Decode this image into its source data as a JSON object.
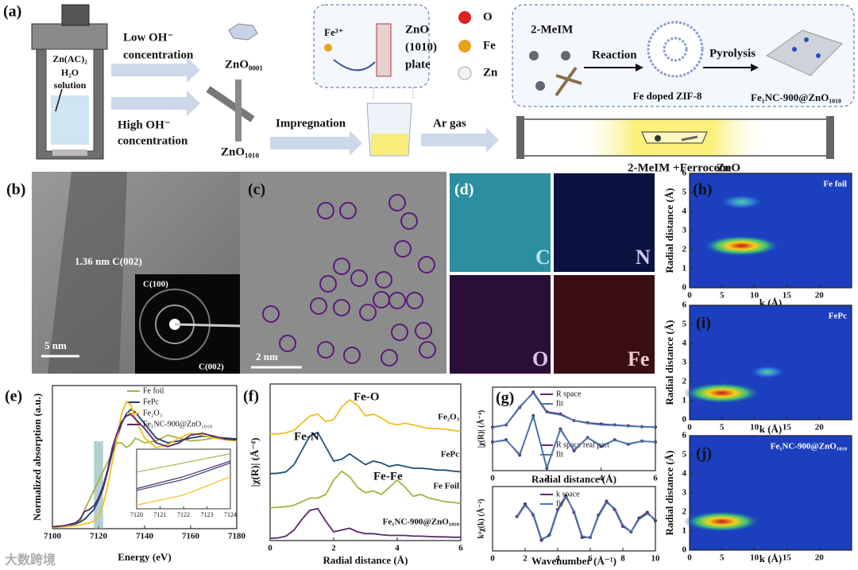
{
  "panel_a": {
    "label": "(a)",
    "vessel": [
      "Zn(AC)₂",
      "H₂O",
      "solution"
    ],
    "low": [
      "Low OH⁻",
      "concentration"
    ],
    "high": [
      "High OH⁻",
      "concentration"
    ],
    "zno0001": "ZnO₀₀₀₁",
    "zno1010": "ZnO₁₀₁₀",
    "impregnation": "Impregnation",
    "inset": [
      "Fe³⁺",
      "ZnO",
      "(1010)",
      "plate"
    ],
    "atoms": [
      "O",
      "Fe",
      "Zn"
    ],
    "mof": {
      "ligand": "2-MeIM",
      "reaction": "Reaction",
      "pyrolysis": "Pyrolysis",
      "zif": "Fe  doped ZIF-8",
      "product": "Fe₁NC-900@ZnO₁₀₁₀"
    },
    "ar": "Ar gas",
    "furnace": [
      "2-MeIM +Ferrocene",
      "ZnO"
    ]
  },
  "panel_b": {
    "label": "(b)",
    "lattice": "1.36 nm C(002)",
    "rings": [
      "C(100)",
      "C(002)"
    ],
    "scale": "5  nm"
  },
  "panel_c": {
    "label": "(c)",
    "scale": "2 nm"
  },
  "panel_d": {
    "label": "(d)",
    "maps": [
      "C",
      "N",
      "O",
      "Fe"
    ]
  },
  "chart_data": [
    {
      "type": "line",
      "label": "(e)",
      "xlabel": "Energy (eV)",
      "ylabel": "Normalized absorption (a.u.)",
      "xlim": [
        7100,
        7180
      ],
      "xticks": [
        7100,
        7120,
        7140,
        7160,
        7180
      ],
      "ylim": [
        0,
        1.5
      ],
      "legend": "upper right",
      "highlight_x": [
        7118,
        7122
      ],
      "x": [
        7100,
        7105,
        7110,
        7112,
        7114,
        7116,
        7118,
        7120,
        7122,
        7124,
        7126,
        7128,
        7130,
        7132,
        7134,
        7136,
        7140,
        7145,
        7150,
        7155,
        7160,
        7165,
        7170,
        7175,
        7180
      ],
      "series": [
        {
          "name": "Fe foil",
          "color": "#a3b341",
          "values": [
            0.02,
            0.03,
            0.05,
            0.08,
            0.2,
            0.3,
            0.4,
            0.5,
            0.6,
            0.7,
            0.8,
            0.9,
            0.9,
            0.85,
            0.88,
            0.95,
            0.9,
            0.92,
            0.98,
            0.95,
            0.92,
            0.93,
            0.95,
            0.94,
            0.93
          ]
        },
        {
          "name": "FePc",
          "color": "#1f3f73",
          "values": [
            0.02,
            0.03,
            0.05,
            0.07,
            0.1,
            0.15,
            0.2,
            0.3,
            0.42,
            0.6,
            0.8,
            0.95,
            1.1,
            1.2,
            1.25,
            1.22,
            1.1,
            0.95,
            0.9,
            0.92,
            0.95,
            0.97,
            0.96,
            0.95,
            0.94
          ]
        },
        {
          "name": "Fe₂O₃",
          "color": "#f0c020",
          "values": [
            0.01,
            0.02,
            0.03,
            0.04,
            0.05,
            0.06,
            0.08,
            0.14,
            0.25,
            0.45,
            0.7,
            0.95,
            1.2,
            1.33,
            1.3,
            1.15,
            0.95,
            0.85,
            0.88,
            0.95,
            1.0,
            0.98,
            0.95,
            0.93,
            0.92
          ]
        },
        {
          "name": "Fe₁NC-900@ZnO₁₀₁₀",
          "color": "#5a2a6a",
          "values": [
            0.02,
            0.03,
            0.06,
            0.1,
            0.18,
            0.2,
            0.24,
            0.32,
            0.45,
            0.62,
            0.85,
            1.0,
            1.12,
            1.18,
            1.2,
            1.15,
            1.05,
            0.9,
            0.86,
            0.9,
            0.98,
            1.0,
            0.97,
            0.94,
            0.93
          ]
        }
      ],
      "inset": {
        "xlim": [
          7120,
          7124
        ],
        "xticks": [
          7120,
          7121,
          7122,
          7123,
          7124
        ],
        "ylim": [
          0.1,
          0.75
        ]
      }
    },
    {
      "type": "line",
      "label": "(f)",
      "xlabel": "Radial distance (Å)",
      "ylabel": "|χ(R)| (Å⁻⁴)",
      "xlim": [
        0,
        6
      ],
      "xticks": [
        0,
        2,
        4,
        6
      ],
      "annotations": [
        "Fe-O",
        "Fe-N",
        "Fe-Fe"
      ],
      "x": [
        0,
        0.25,
        0.5,
        0.75,
        1,
        1.25,
        1.5,
        1.75,
        2,
        2.25,
        2.5,
        2.75,
        3,
        3.25,
        3.5,
        3.75,
        4,
        4.25,
        4.5,
        4.75,
        5,
        5.25,
        5.5,
        5.75,
        6
      ],
      "series": [
        {
          "name": "Fe₂O₃",
          "color": "#f0c020",
          "values": [
            0.05,
            0.05,
            0.08,
            0.15,
            0.35,
            0.55,
            0.6,
            0.4,
            0.45,
            0.8,
            1.0,
            0.85,
            0.55,
            0.6,
            0.5,
            0.35,
            0.3,
            0.35,
            0.3,
            0.25,
            0.2,
            0.2,
            0.18,
            0.15,
            0.12
          ]
        },
        {
          "name": "FePc",
          "color": "#1f4e79",
          "values": [
            0.05,
            0.06,
            0.1,
            0.3,
            0.7,
            1.1,
            1.2,
            0.8,
            0.4,
            0.45,
            0.6,
            0.45,
            0.3,
            0.4,
            0.35,
            0.25,
            0.3,
            0.25,
            0.2,
            0.2,
            0.18,
            0.15,
            0.15,
            0.12,
            0.1
          ]
        },
        {
          "name": "Fe Foil",
          "color": "#a3b341",
          "values": [
            0.03,
            0.04,
            0.06,
            0.1,
            0.2,
            0.3,
            0.3,
            0.4,
            0.8,
            1.05,
            0.9,
            0.6,
            0.45,
            0.5,
            0.4,
            0.6,
            0.8,
            0.6,
            0.35,
            0.4,
            0.3,
            0.25,
            0.2,
            0.18,
            0.15
          ]
        },
        {
          "name": "Fe₁NC-900@ZnO₁₀₁₀",
          "color": "#5a2a6a",
          "values": [
            0.02,
            0.03,
            0.08,
            0.25,
            0.55,
            0.8,
            0.85,
            0.5,
            0.2,
            0.25,
            0.3,
            0.2,
            0.15,
            0.15,
            0.12,
            0.1,
            0.1,
            0.1,
            0.08,
            0.08,
            0.07,
            0.06,
            0.06,
            0.05,
            0.05
          ]
        }
      ]
    },
    {
      "type": "line",
      "label": "(g)",
      "xlabel": "Radial distance (Å)",
      "ylabel": "|χ(R)| (Å⁻⁴)",
      "xlim": [
        0,
        6
      ],
      "xticks": [
        0,
        2,
        4,
        6
      ],
      "legend": "upper right",
      "x": [
        0,
        0.5,
        1,
        1.5,
        2,
        2.5,
        3,
        3.5,
        4,
        4.5,
        5,
        5.5,
        6
      ],
      "series": [
        {
          "name": "R space",
          "color": "#5a2a6a",
          "marker": "circle",
          "values": [
            0.05,
            0.1,
            0.5,
            0.85,
            0.4,
            0.35,
            0.2,
            0.15,
            0.12,
            0.1,
            0.08,
            0.06,
            0.05
          ]
        },
        {
          "name": "fit",
          "color": "#4a78b0",
          "values": [
            0.04,
            0.1,
            0.52,
            0.83,
            0.38,
            0.33,
            0.2,
            0.14,
            0.1,
            0.09,
            0.07,
            0.06,
            0.05
          ]
        },
        {
          "name": "R space real part",
          "color": "#5a2a6a",
          "marker": "circle",
          "values": [
            0,
            0.05,
            -0.3,
            0.6,
            -0.6,
            0.3,
            -0.2,
            0.1,
            -0.1,
            0.05,
            -0.05,
            0.02,
            0
          ]
        },
        {
          "name": "fit",
          "color": "#4a78b0",
          "values": [
            0,
            0.04,
            -0.28,
            0.58,
            -0.58,
            0.28,
            -0.18,
            0.1,
            -0.08,
            0.04,
            -0.04,
            0.02,
            0
          ]
        }
      ]
    },
    {
      "type": "line",
      "xlabel": "Wavenumber (Å⁻¹)",
      "ylabel": "k²χ(k) (Å⁻²)",
      "xlim": [
        0,
        10
      ],
      "xticks": [
        0,
        2,
        4,
        6,
        8,
        10
      ],
      "legend": "upper right",
      "x": [
        1.5,
        2,
        2.5,
        3,
        3.5,
        4,
        4.5,
        5,
        5.5,
        6,
        6.5,
        7,
        7.5,
        8,
        8.5,
        9,
        9.5,
        10
      ],
      "series": [
        {
          "name": "k space",
          "color": "#5a2a6a",
          "marker": "circle",
          "values": [
            0.15,
            0.6,
            0.2,
            -0.7,
            -0.5,
            0.4,
            0.9,
            0.3,
            -0.6,
            -0.6,
            0.2,
            0.7,
            0.4,
            -0.2,
            -0.4,
            0.1,
            0.3,
            0.0
          ]
        },
        {
          "name": "fit",
          "color": "#4a78b0",
          "values": [
            0.12,
            0.55,
            0.25,
            -0.65,
            -0.55,
            0.35,
            0.85,
            0.35,
            -0.55,
            -0.62,
            0.15,
            0.65,
            0.45,
            -0.15,
            -0.4,
            0.05,
            0.25,
            0.05
          ]
        }
      ]
    },
    {
      "type": "contour",
      "label": "(h)",
      "title": "Fe foil",
      "xlabel": "k (Å)",
      "ylabel": "Radial distance (Å)",
      "xlim": [
        0,
        25
      ],
      "xticks": [
        0,
        5,
        10,
        15,
        20
      ],
      "ylim": [
        0,
        6
      ],
      "yticks": [
        0,
        1,
        2,
        3,
        4,
        5,
        6
      ],
      "x": [
        8,
        8
      ],
      "y": [
        2.2,
        4.5
      ],
      "values": [
        1,
        0.45
      ]
    },
    {
      "type": "contour",
      "label": "(i)",
      "title": "FePc",
      "xlabel": "k (Å)",
      "ylabel": "Radial distance (Å)",
      "xlim": [
        0,
        25
      ],
      "xticks": [
        0,
        5,
        10,
        15,
        20
      ],
      "ylim": [
        0,
        6
      ],
      "yticks": [
        0,
        1,
        2,
        3,
        4,
        5,
        6
      ],
      "x": [
        5,
        12
      ],
      "y": [
        1.4,
        2.5
      ],
      "values": [
        1,
        0.3
      ]
    },
    {
      "type": "contour",
      "label": "(j)",
      "title": "Fe₁NC-900@ZnO₁₀₁₀",
      "xlabel": "k (Å)",
      "ylabel": "Radial distance (Å)",
      "xlim": [
        0,
        25
      ],
      "xticks": [
        0,
        5,
        10,
        15,
        20
      ],
      "ylim": [
        0,
        6
      ],
      "yticks": [
        0,
        1,
        2,
        3,
        4,
        5,
        6
      ],
      "x": [
        5
      ],
      "y": [
        1.5
      ],
      "values": [
        1
      ]
    }
  ],
  "watermark": "大数跨境"
}
